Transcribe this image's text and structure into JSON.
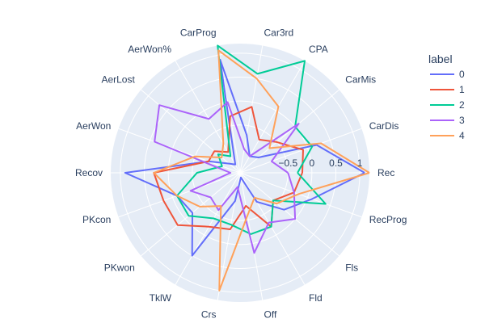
{
  "chart_data": {
    "type": "radar",
    "axes": [
      "Rec",
      "CarDis",
      "CarMis",
      "CPA",
      "Car3rd",
      "CarProg",
      "AerWon%",
      "AerLost",
      "AerWon",
      "Recov",
      "PKcon",
      "PKwon",
      "TklW",
      "Crs",
      "Off",
      "Fld",
      "Fls",
      "RecProg"
    ],
    "radial_range": [
      -1.5,
      1.2
    ],
    "radial_ticks": [
      -0.5,
      0,
      0.5,
      1
    ],
    "radial_tick_labels": [
      "−0.5",
      "0",
      "0.5",
      "1"
    ],
    "legend_title": "label",
    "legend_position": "top-right",
    "series": [
      {
        "name": "0",
        "color": "#636efa",
        "values": [
          1.1,
          0.2,
          -1.0,
          -1.1,
          -0.7,
          0.9,
          -1.3,
          -1.2,
          -0.8,
          0.9,
          -0.1,
          -0.2,
          0.5,
          -0.9,
          -1.4,
          -0.8,
          -0.3,
          0.1
        ]
      },
      {
        "name": "1",
        "color": "#ef553b",
        "values": [
          -0.2,
          -0.1,
          -0.5,
          -0.7,
          -0.1,
          -0.3,
          -1.0,
          -0.8,
          -0.8,
          0.3,
          0.2,
          0.2,
          -0.2,
          -0.3,
          -0.8,
          -0.2,
          -0.6,
          -0.3
        ]
      },
      {
        "name": "2",
        "color": "#00cc96",
        "values": [
          -0.3,
          0.1,
          0.0,
          1.2,
          0.6,
          1.2,
          -1.1,
          -0.9,
          -1.1,
          -0.6,
          -0.1,
          -0.1,
          -0.4,
          -0.4,
          -0.2,
          -0.2,
          -0.6,
          0.4
        ]
      },
      {
        "name": "3",
        "color": "#ab63fa",
        "values": [
          -0.5,
          -0.8,
          0.1,
          -1.1,
          -1.0,
          0.0,
          -0.2,
          0.7,
          0.4,
          -1.3,
          -0.4,
          -0.7,
          -0.6,
          -1.2,
          0.2,
          -0.3,
          0.0,
          -0.3
        ]
      },
      {
        "name": "4",
        "color": "#ffa15a",
        "values": [
          1.2,
          0.3,
          -0.7,
          0.1,
          0.5,
          1.1,
          -0.8,
          -1.0,
          -0.5,
          0.3,
          -0.1,
          -0.4,
          -0.7,
          1.0,
          -0.6,
          -0.9,
          -0.5,
          -0.2
        ]
      }
    ]
  }
}
